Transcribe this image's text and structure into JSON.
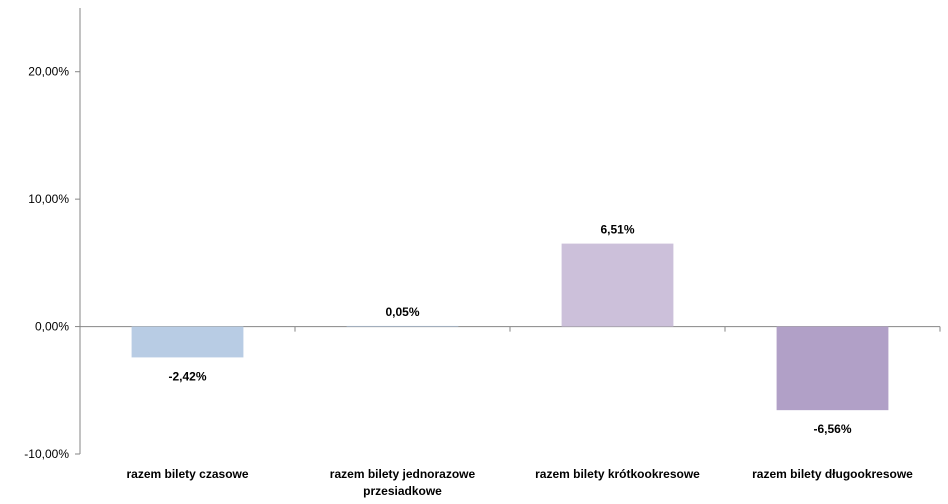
{
  "chart_data": {
    "type": "bar",
    "categories": [
      [
        "razem bilety czasowe"
      ],
      [
        "razem bilety jednorazowe",
        "przesiadkowe"
      ],
      [
        "razem bilety krótkookresowe"
      ],
      [
        "razem bilety długookresowe"
      ]
    ],
    "values": [
      -2.42,
      0.05,
      6.51,
      -6.56
    ],
    "data_labels": [
      "-2,42%",
      "0,05%",
      "6,51%",
      "-6,56%"
    ],
    "colors": [
      "#b8cce4",
      "#b8cce4",
      "#ccc0da",
      "#b1a0c7"
    ],
    "ylim": [
      -10,
      25
    ],
    "yticks": [
      -10,
      0,
      10,
      20
    ],
    "ytick_labels": [
      "-10,00%",
      "0,00%",
      "10,00%",
      "20,00%"
    ],
    "grid": false,
    "legend": "none"
  }
}
